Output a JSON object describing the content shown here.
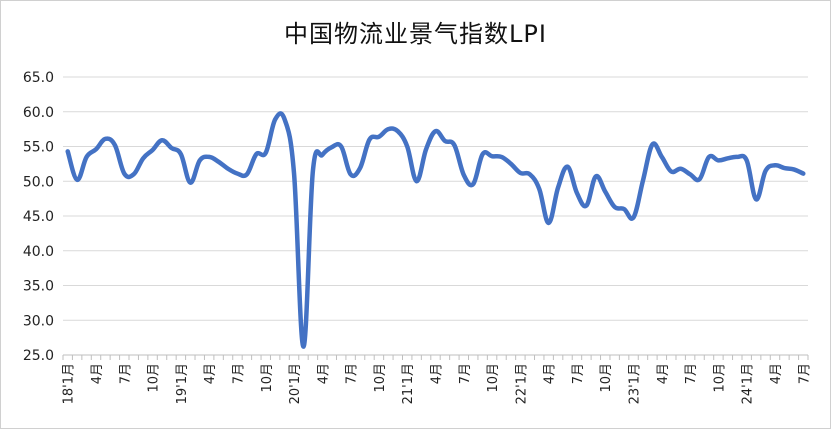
{
  "chart_data": {
    "type": "line",
    "title": "中国物流业景气指数LPI",
    "xlabel": "",
    "ylabel": "",
    "ylim": [
      25.0,
      65.0
    ],
    "yticks": [
      "25.0",
      "30.0",
      "35.0",
      "40.0",
      "45.0",
      "50.0",
      "55.0",
      "60.0",
      "65.0"
    ],
    "grid": "horizontal",
    "color": "#4472C4",
    "xtick_labels": [
      "18'1月",
      "4月",
      "7月",
      "10月",
      "19'1月",
      "4月",
      "7月",
      "10月",
      "20'1月",
      "4月",
      "7月",
      "10月",
      "21'1月",
      "4月",
      "7月",
      "10月",
      "22'1月",
      "4月",
      "7月",
      "10月",
      "23'1月",
      "4月",
      "7月",
      "10月",
      "24'1月",
      "4月",
      "7月"
    ],
    "values": [
      54.3,
      50.2,
      53.5,
      54.6,
      56.1,
      55.2,
      51.1,
      51.0,
      53.3,
      54.5,
      55.9,
      54.8,
      53.9,
      49.8,
      53.0,
      53.5,
      52.8,
      51.8,
      51.1,
      51.0,
      53.9,
      54.1,
      58.9,
      58.9,
      51.1,
      26.2,
      51.5,
      53.8,
      54.9,
      55.0,
      51.0,
      51.9,
      56.0,
      56.4,
      57.5,
      57.2,
      55.0,
      50.0,
      54.6,
      57.2,
      55.8,
      55.2,
      50.9,
      49.6,
      53.9,
      53.6,
      53.5,
      52.5,
      51.2,
      51.0,
      48.9,
      44.0,
      49.1,
      52.1,
      48.3,
      46.5,
      50.7,
      48.5,
      46.3,
      46.0,
      44.8,
      50.1,
      55.3,
      53.5,
      51.4,
      51.8,
      51.0,
      50.3,
      53.5,
      53.0,
      53.3,
      53.5,
      53.0,
      47.4,
      51.5,
      52.3,
      51.9,
      51.7,
      51.1
    ]
  }
}
